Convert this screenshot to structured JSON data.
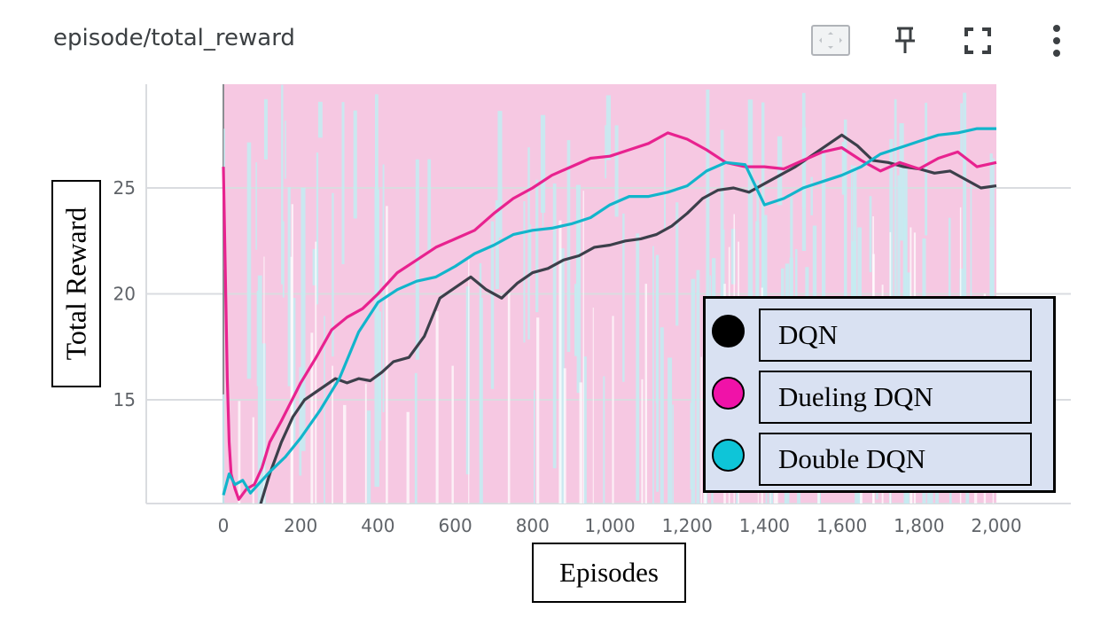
{
  "header": {
    "title": "episode/total_reward",
    "icons": [
      "fit-domain-icon",
      "pin-icon",
      "fullscreen-icon",
      "more-vert-icon"
    ]
  },
  "chart_data": {
    "type": "line",
    "title": "episode/total_reward",
    "xlabel": "Episodes",
    "ylabel": "Total Reward",
    "xlim": [
      -200,
      2200
    ],
    "ylim": [
      10,
      30
    ],
    "x_ticks": [
      0,
      200,
      400,
      600,
      800,
      1000,
      1200,
      1400,
      1600,
      1800,
      2000
    ],
    "x_tick_labels": [
      "0",
      "200",
      "400",
      "600",
      "800",
      "1,000",
      "1,200",
      "1,400",
      "1,600",
      "1,800",
      "2,000"
    ],
    "y_ticks": [
      15,
      20,
      25
    ],
    "y_tick_labels": [
      "15",
      "20",
      "25"
    ],
    "grid": true,
    "legend_position": "bottom-right",
    "series": [
      {
        "name": "DQN",
        "color": "#3c3f4a",
        "legend_color": "#000000",
        "x": [
          95,
          120,
          150,
          180,
          210,
          250,
          290,
          320,
          350,
          380,
          410,
          440,
          480,
          520,
          560,
          600,
          640,
          680,
          720,
          760,
          800,
          840,
          880,
          920,
          960,
          1000,
          1040,
          1080,
          1120,
          1160,
          1200,
          1240,
          1280,
          1320,
          1360,
          1400,
          1440,
          1480,
          1520,
          1560,
          1600,
          1640,
          1680,
          1720,
          1760,
          1800,
          1840,
          1880,
          1920,
          1960,
          2000
        ],
        "values": [
          10.0,
          11.5,
          13.0,
          14.2,
          15.0,
          15.5,
          16.0,
          15.8,
          16.0,
          15.9,
          16.3,
          16.8,
          17.0,
          18.0,
          19.8,
          20.3,
          20.8,
          20.2,
          19.8,
          20.5,
          21.0,
          21.2,
          21.6,
          21.8,
          22.2,
          22.3,
          22.5,
          22.6,
          22.8,
          23.2,
          23.8,
          24.5,
          24.9,
          25.0,
          24.8,
          25.2,
          25.6,
          26.0,
          26.5,
          27.0,
          27.5,
          27.0,
          26.3,
          26.2,
          26.0,
          25.9,
          25.7,
          25.8,
          25.4,
          25.0,
          25.1
        ]
      },
      {
        "name": "Dueling DQN",
        "color": "#e8228f",
        "legend_color": "#f012a8",
        "x": [
          0,
          5,
          10,
          15,
          20,
          30,
          40,
          60,
          80,
          100,
          120,
          150,
          200,
          240,
          280,
          320,
          360,
          400,
          450,
          500,
          550,
          600,
          650,
          700,
          750,
          800,
          850,
          900,
          950,
          1000,
          1050,
          1100,
          1150,
          1200,
          1250,
          1300,
          1350,
          1400,
          1450,
          1500,
          1550,
          1600,
          1650,
          1700,
          1750,
          1800,
          1850,
          1900,
          1950,
          2000
        ],
        "values": [
          26.0,
          21.0,
          16.0,
          13.0,
          11.5,
          10.8,
          10.3,
          10.8,
          11.0,
          11.8,
          13.0,
          14.0,
          15.8,
          17.0,
          18.3,
          18.9,
          19.3,
          20.0,
          21.0,
          21.6,
          22.2,
          22.6,
          23.0,
          23.8,
          24.5,
          25.0,
          25.6,
          26.0,
          26.4,
          26.5,
          26.8,
          27.1,
          27.6,
          27.3,
          26.8,
          26.2,
          26.0,
          26.0,
          25.9,
          26.3,
          26.7,
          26.9,
          26.3,
          25.8,
          26.2,
          25.9,
          26.4,
          26.7,
          26.0,
          26.2
        ]
      },
      {
        "name": "Double DQN",
        "color": "#12b5cb",
        "legend_color": "#0ec5d8",
        "x": [
          0,
          15,
          30,
          50,
          70,
          90,
          120,
          160,
          200,
          250,
          300,
          350,
          400,
          450,
          500,
          550,
          600,
          650,
          700,
          750,
          800,
          850,
          900,
          950,
          1000,
          1050,
          1100,
          1150,
          1200,
          1250,
          1300,
          1350,
          1400,
          1450,
          1500,
          1550,
          1600,
          1650,
          1700,
          1750,
          1800,
          1850,
          1900,
          1950,
          2000
        ],
        "values": [
          10.5,
          11.5,
          11.0,
          11.2,
          10.6,
          11.0,
          11.6,
          12.3,
          13.2,
          14.5,
          16.0,
          18.2,
          19.6,
          20.2,
          20.6,
          20.8,
          21.3,
          21.9,
          22.3,
          22.8,
          23.0,
          23.1,
          23.3,
          23.6,
          24.2,
          24.6,
          24.6,
          24.8,
          25.1,
          25.8,
          26.2,
          26.1,
          24.2,
          24.5,
          25.0,
          25.3,
          25.6,
          26.0,
          26.6,
          26.9,
          27.2,
          27.5,
          27.6,
          27.8,
          27.8
        ]
      }
    ]
  }
}
